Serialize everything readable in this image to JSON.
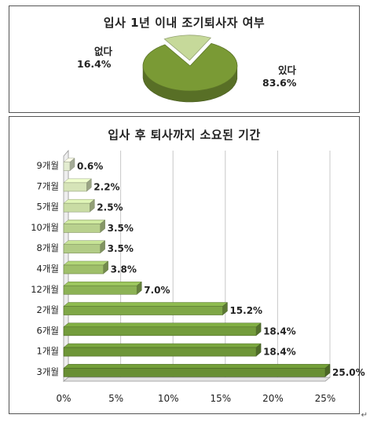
{
  "chart_data": [
    {
      "type": "pie",
      "title": "입사 1년 이내 조기퇴사자 여부",
      "slices": [
        {
          "name": "있다",
          "value": 83.6,
          "label": "83.6%",
          "color": "#7a9a35"
        },
        {
          "name": "없다",
          "value": 16.4,
          "label": "16.4%",
          "color": "#c6d99a"
        }
      ]
    },
    {
      "type": "bar",
      "orientation": "horizontal",
      "title": "입사 후 퇴사까지 소요된 기간",
      "categories": [
        "9개월",
        "7개월",
        "5개월",
        "10개월",
        "8개월",
        "4개월",
        "12개월",
        "2개월",
        "6개월",
        "1개월",
        "3개월"
      ],
      "values": [
        0.6,
        2.2,
        2.5,
        3.5,
        3.5,
        3.8,
        7.0,
        15.2,
        18.4,
        18.4,
        25.0
      ],
      "labels": [
        "0.6%",
        "2.2%",
        "2.5%",
        "3.5%",
        "3.5%",
        "3.8%",
        "7.0%",
        "15.2%",
        "18.4%",
        "18.4%",
        "25.0%"
      ],
      "colors": [
        "#e3ecd0",
        "#d6e4b8",
        "#c9dca4",
        "#b9d18e",
        "#b2cc86",
        "#9fbf6a",
        "#8cb255",
        "#7fa747",
        "#739c3c",
        "#6e9638",
        "#688f33"
      ],
      "xlim": [
        0,
        25
      ],
      "xticks": [
        "0%",
        "5%",
        "10%",
        "15%",
        "20%",
        "25%"
      ],
      "grid": true
    }
  ]
}
